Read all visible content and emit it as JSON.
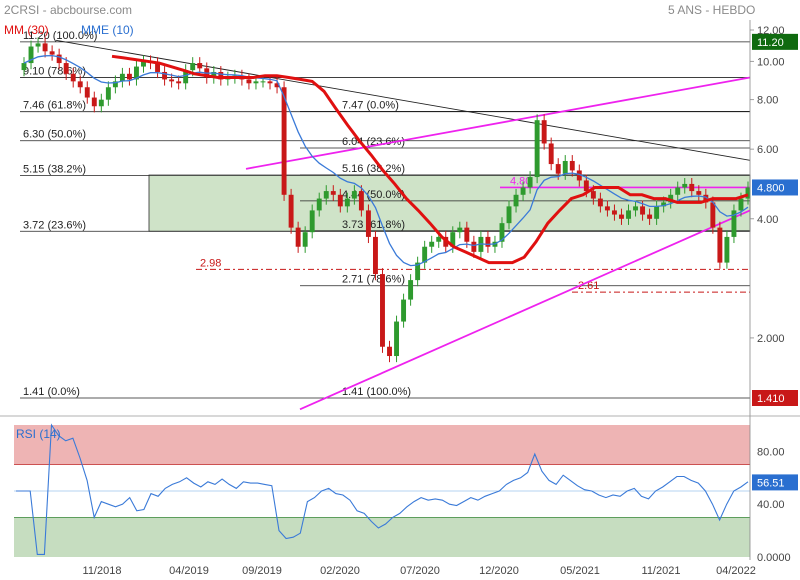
{
  "header": {
    "left": "2CRSI - abcbourse.com",
    "right": "5 ANS - HEBDO",
    "legend": [
      {
        "label": "MM (30)",
        "color": "#e01010"
      },
      {
        "label": "MME (10)",
        "color": "#2a6fd0"
      }
    ]
  },
  "colors": {
    "candle_up": "#2e9a2e",
    "candle_down": "#c81818",
    "sma": "#e01010",
    "ema": "#3a7ad8",
    "channel": "#ee22ee",
    "fib_zone": "#cfe3c8",
    "rsi_over": "#eeb4b4",
    "rsi_under": "#c6ddc0",
    "rsi_line": "#3a7ad8"
  },
  "chart_data": [
    {
      "type": "candlestick",
      "title": "2CRSI - abcbourse.com",
      "scale": "log",
      "ylim": [
        1.35,
        12.0
      ],
      "y_ticks": [
        {
          "value": 12,
          "label": "12.00"
        },
        {
          "value": 10,
          "label": "10.00"
        },
        {
          "value": 8,
          "label": "8.00"
        },
        {
          "value": 6,
          "label": "6.00"
        },
        {
          "value": 4,
          "label": "4.00"
        },
        {
          "value": 2,
          "label": "2.000"
        }
      ],
      "x_ticks": [
        "11/2018",
        "04/2019",
        "09/2019",
        "02/2020",
        "07/2020",
        "12/2020",
        "05/2021",
        "11/2021",
        "04/2022"
      ],
      "price_badges": [
        {
          "value": 11.2,
          "label": "11.20",
          "color": "#0f6a0f"
        },
        {
          "value": 4.8,
          "label": "4.800",
          "color": "#2a6fd0"
        },
        {
          "value": 1.41,
          "label": "1.410",
          "color": "#c81818"
        }
      ],
      "fib_left": [
        {
          "value": 11.2,
          "label": "11.20  (100.0%)"
        },
        {
          "value": 9.1,
          "label": "9.10  (78.6%)"
        },
        {
          "value": 7.46,
          "label": "7.46  (61.8%)"
        },
        {
          "value": 6.3,
          "label": "6.30  (50.0%)"
        },
        {
          "value": 5.15,
          "label": "5.15  (38.2%)"
        },
        {
          "value": 3.72,
          "label": "3.72  (23.6%)"
        },
        {
          "value": 1.41,
          "label": "1.41  (0.0%)"
        }
      ],
      "fib_right": [
        {
          "value": 7.47,
          "label": "7.47  (0.0%)"
        },
        {
          "value": 6.04,
          "label": "6.04  (23.6%)"
        },
        {
          "value": 5.16,
          "label": "5.16  (38.2%)"
        },
        {
          "value": 4.44,
          "label": "4.44  (50.0%)"
        },
        {
          "value": 3.73,
          "label": "3.73  (61.8%)"
        },
        {
          "value": 2.71,
          "label": "2.71  (78.6%)"
        },
        {
          "value": 1.41,
          "label": "1.41  (100.0%)"
        }
      ],
      "annotations": [
        {
          "value": 2.98,
          "label": "2.98",
          "color": "#c81818"
        },
        {
          "value": 2.61,
          "label": "2.61",
          "color": "#c81818"
        },
        {
          "value": 4.8,
          "label": "4.80",
          "color": "#ee22ee"
        }
      ],
      "close": [
        9.9,
        10.9,
        11.1,
        10.6,
        10.4,
        9.9,
        9.3,
        8.9,
        8.6,
        8.1,
        7.7,
        8.0,
        8.6,
        8.9,
        9.3,
        9.0,
        9.7,
        10.0,
        9.9,
        9.4,
        9.0,
        8.9,
        8.8,
        9.5,
        9.9,
        9.6,
        9.1,
        9.4,
        9.0,
        9.1,
        9.2,
        9.0,
        8.8,
        8.9,
        8.9,
        8.8,
        8.6,
        4.6,
        3.8,
        3.4,
        3.7,
        4.2,
        4.5,
        4.7,
        4.6,
        4.3,
        4.5,
        4.7,
        4.2,
        3.6,
        2.9,
        1.9,
        1.8,
        2.2,
        2.5,
        2.8,
        3.1,
        3.4,
        3.5,
        3.6,
        3.4,
        3.7,
        3.8,
        3.5,
        3.3,
        3.6,
        3.4,
        3.5,
        3.9,
        4.3,
        4.6,
        4.8,
        5.1,
        7.1,
        6.2,
        5.5,
        5.2,
        5.6,
        5.3,
        5.0,
        4.7,
        4.5,
        4.3,
        4.2,
        4.1,
        4.0,
        4.2,
        4.3,
        4.1,
        4.0,
        4.3,
        4.4,
        4.6,
        4.8,
        4.9,
        4.7,
        4.6,
        4.4,
        3.8,
        3.1,
        3.6,
        4.2,
        4.5,
        4.8
      ],
      "sma": [
        10.3,
        10.2,
        10.1,
        10.0,
        9.9,
        9.7,
        9.5,
        9.3,
        9.2,
        9.1,
        9.1,
        9.1,
        9.1,
        9.2,
        9.2,
        9.1,
        9.0,
        8.9,
        8.4,
        7.6,
        6.9,
        6.3,
        5.8,
        5.3,
        4.9,
        4.5,
        4.2,
        3.9,
        3.6,
        3.4,
        3.3,
        3.2,
        3.1,
        3.1,
        3.1,
        3.2,
        3.5,
        3.9,
        4.2,
        4.5,
        4.6,
        4.8,
        4.8,
        4.8,
        4.6,
        4.6,
        4.5,
        4.5,
        4.4,
        4.4,
        4.4,
        4.5,
        4.5,
        4.5,
        4.6
      ],
      "rsi": [
        {
          "x": 0,
          "y": 48
        },
        {
          "x": 4,
          "y": 48
        },
        {
          "x": 10,
          "y": 48
        },
        {
          "x": 12,
          "y": 2
        },
        {
          "x": 18,
          "y": 2
        },
        {
          "x": 22,
          "y": 70
        },
        {
          "x": 26,
          "y": 48
        },
        {
          "x": 32,
          "y": 70
        },
        {
          "x": 36,
          "y": 88
        },
        {
          "x": 40,
          "y": 98
        },
        {
          "x": 44,
          "y": 88
        },
        {
          "x": 48,
          "y": 94
        },
        {
          "x": 52,
          "y": 85
        },
        {
          "x": 56,
          "y": 80
        },
        {
          "x": 60,
          "y": 75
        },
        {
          "x": 64,
          "y": 65
        },
        {
          "x": 68,
          "y": 50
        },
        {
          "x": 72,
          "y": 30
        },
        {
          "x": 76,
          "y": 32
        }
      ]
    },
    {
      "type": "line",
      "title": "RSI (14)",
      "ylim": [
        0,
        100
      ],
      "y_ticks": [
        {
          "value": 80,
          "label": "80.00"
        },
        {
          "value": 40,
          "label": "40.00"
        },
        {
          "value": 0,
          "label": "0.0000"
        }
      ],
      "overbought": 70,
      "oversold": 30,
      "midline": 50,
      "last_badge": {
        "value": 56.51,
        "label": "56.51"
      },
      "values": [
        50,
        50,
        50,
        2,
        2,
        100,
        92,
        88,
        90,
        75,
        58,
        30,
        42,
        40,
        38,
        40,
        45,
        35,
        36,
        48,
        46,
        52,
        55,
        57,
        60,
        56,
        53,
        57,
        55,
        59,
        55,
        52,
        57,
        56,
        56,
        55,
        54,
        20,
        14,
        15,
        18,
        42,
        45,
        50,
        52,
        48,
        47,
        43,
        35,
        33,
        27,
        22,
        25,
        30,
        33,
        38,
        42,
        45,
        43,
        44,
        43,
        40,
        39,
        42,
        45,
        43,
        46,
        48,
        50,
        55,
        58,
        60,
        64,
        78,
        65,
        58,
        55,
        62,
        58,
        54,
        51,
        50,
        47,
        45,
        47,
        46,
        50,
        52,
        46,
        44,
        50,
        53,
        57,
        61,
        61,
        58,
        56,
        50,
        40,
        28,
        40,
        50,
        53,
        57
      ]
    }
  ]
}
